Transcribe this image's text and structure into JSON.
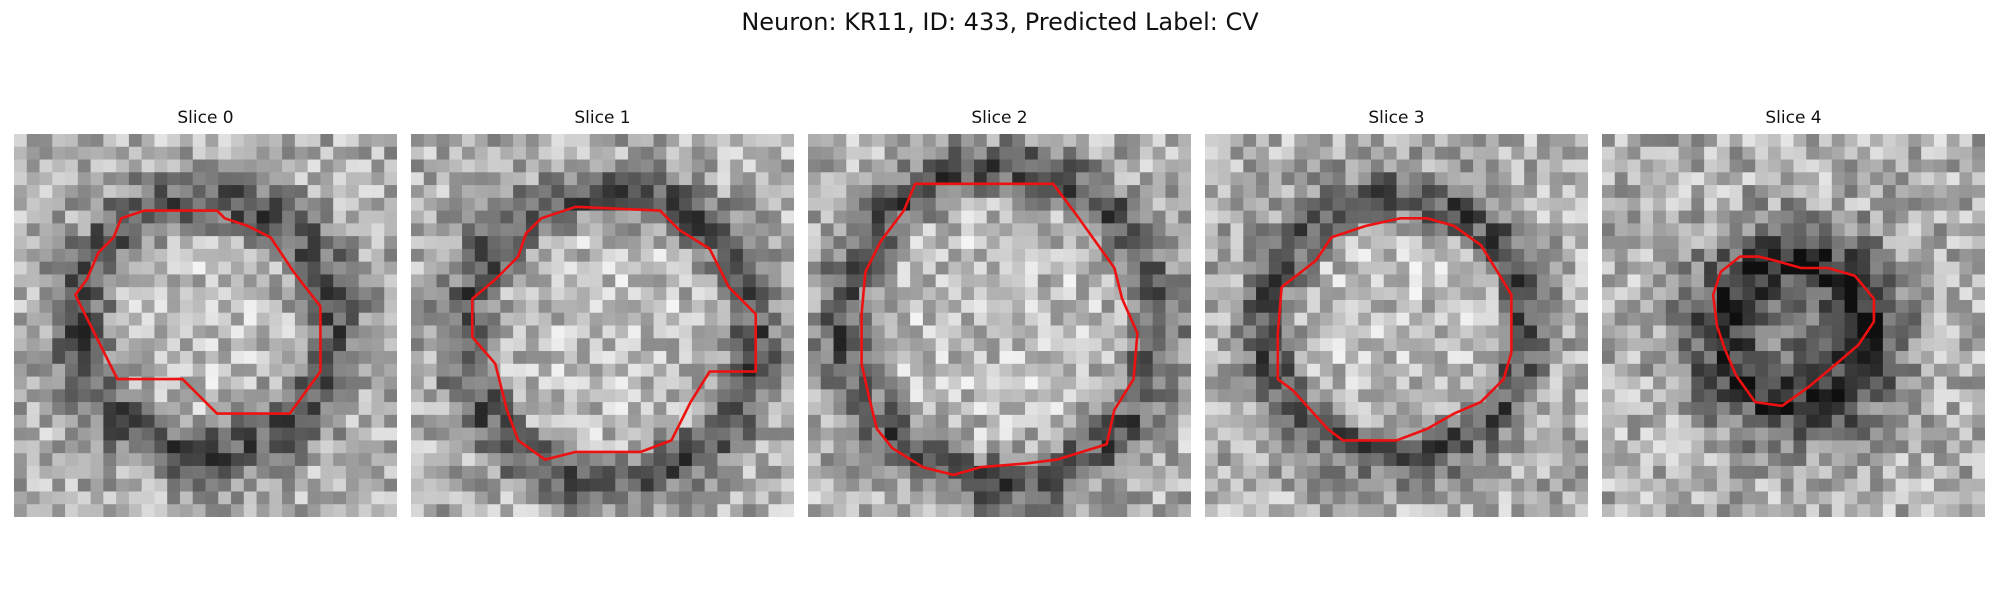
{
  "figure": {
    "title": "Neuron: KR11, ID: 433, Predicted Label: CV"
  },
  "colors": {
    "contour": "#ee1111",
    "background": "#ffffff"
  },
  "panels": [
    {
      "title": "Slice 0",
      "image_content": "grayscale microscopy patch of a round neuron cell body with a dark rim",
      "contour_color": "red",
      "contour": [
        [
          0.34,
          0.2
        ],
        [
          0.28,
          0.22
        ],
        [
          0.26,
          0.27
        ],
        [
          0.22,
          0.31
        ],
        [
          0.19,
          0.38
        ],
        [
          0.16,
          0.42
        ],
        [
          0.26,
          0.62
        ],
        [
          0.27,
          0.64
        ],
        [
          0.44,
          0.64
        ],
        [
          0.53,
          0.73
        ],
        [
          0.72,
          0.73
        ],
        [
          0.8,
          0.62
        ],
        [
          0.8,
          0.45
        ],
        [
          0.73,
          0.36
        ],
        [
          0.67,
          0.27
        ],
        [
          0.61,
          0.24
        ],
        [
          0.55,
          0.22
        ],
        [
          0.53,
          0.2
        ]
      ]
    },
    {
      "title": "Slice 1",
      "image_content": "grayscale microscopy patch of a larger round cell body",
      "contour_color": "red",
      "contour": [
        [
          0.43,
          0.19
        ],
        [
          0.34,
          0.22
        ],
        [
          0.3,
          0.26
        ],
        [
          0.28,
          0.32
        ],
        [
          0.22,
          0.38
        ],
        [
          0.16,
          0.43
        ],
        [
          0.16,
          0.53
        ],
        [
          0.22,
          0.6
        ],
        [
          0.25,
          0.72
        ],
        [
          0.28,
          0.8
        ],
        [
          0.35,
          0.85
        ],
        [
          0.43,
          0.83
        ],
        [
          0.6,
          0.83
        ],
        [
          0.68,
          0.8
        ],
        [
          0.73,
          0.7
        ],
        [
          0.78,
          0.62
        ],
        [
          0.9,
          0.62
        ],
        [
          0.9,
          0.47
        ],
        [
          0.83,
          0.4
        ],
        [
          0.78,
          0.3
        ],
        [
          0.7,
          0.25
        ],
        [
          0.65,
          0.2
        ]
      ]
    },
    {
      "title": "Slice 2",
      "image_content": "grayscale microscopy patch of a large round cell body with dark rim at lower right",
      "contour_color": "red",
      "contour": [
        [
          0.28,
          0.13
        ],
        [
          0.25,
          0.2
        ],
        [
          0.19,
          0.28
        ],
        [
          0.15,
          0.36
        ],
        [
          0.14,
          0.47
        ],
        [
          0.14,
          0.6
        ],
        [
          0.16,
          0.69
        ],
        [
          0.18,
          0.77
        ],
        [
          0.22,
          0.82
        ],
        [
          0.3,
          0.87
        ],
        [
          0.38,
          0.89
        ],
        [
          0.45,
          0.87
        ],
        [
          0.57,
          0.86
        ],
        [
          0.65,
          0.85
        ],
        [
          0.78,
          0.81
        ],
        [
          0.8,
          0.72
        ],
        [
          0.85,
          0.64
        ],
        [
          0.86,
          0.52
        ],
        [
          0.82,
          0.43
        ],
        [
          0.8,
          0.35
        ],
        [
          0.75,
          0.28
        ],
        [
          0.7,
          0.21
        ],
        [
          0.64,
          0.13
        ]
      ]
    },
    {
      "title": "Slice 3",
      "image_content": "grayscale microscopy patch of a round cell body with thick dark ring",
      "contour_color": "red",
      "contour": [
        [
          0.42,
          0.24
        ],
        [
          0.33,
          0.27
        ],
        [
          0.29,
          0.33
        ],
        [
          0.2,
          0.4
        ],
        [
          0.19,
          0.52
        ],
        [
          0.19,
          0.64
        ],
        [
          0.23,
          0.67
        ],
        [
          0.32,
          0.77
        ],
        [
          0.36,
          0.8
        ],
        [
          0.5,
          0.8
        ],
        [
          0.58,
          0.77
        ],
        [
          0.65,
          0.73
        ],
        [
          0.72,
          0.7
        ],
        [
          0.78,
          0.64
        ],
        [
          0.8,
          0.57
        ],
        [
          0.8,
          0.42
        ],
        [
          0.77,
          0.37
        ],
        [
          0.72,
          0.29
        ],
        [
          0.65,
          0.24
        ],
        [
          0.58,
          0.22
        ],
        [
          0.51,
          0.22
        ]
      ]
    },
    {
      "title": "Slice 4",
      "image_content": "grayscale microscopy patch of a smaller dark cell body",
      "contour_color": "red",
      "contour": [
        [
          0.36,
          0.32
        ],
        [
          0.31,
          0.36
        ],
        [
          0.29,
          0.42
        ],
        [
          0.3,
          0.5
        ],
        [
          0.32,
          0.56
        ],
        [
          0.35,
          0.63
        ],
        [
          0.4,
          0.7
        ],
        [
          0.47,
          0.71
        ],
        [
          0.54,
          0.66
        ],
        [
          0.6,
          0.61
        ],
        [
          0.67,
          0.55
        ],
        [
          0.71,
          0.49
        ],
        [
          0.71,
          0.43
        ],
        [
          0.66,
          0.37
        ],
        [
          0.59,
          0.35
        ],
        [
          0.52,
          0.35
        ],
        [
          0.45,
          0.33
        ],
        [
          0.41,
          0.32
        ]
      ]
    }
  ]
}
